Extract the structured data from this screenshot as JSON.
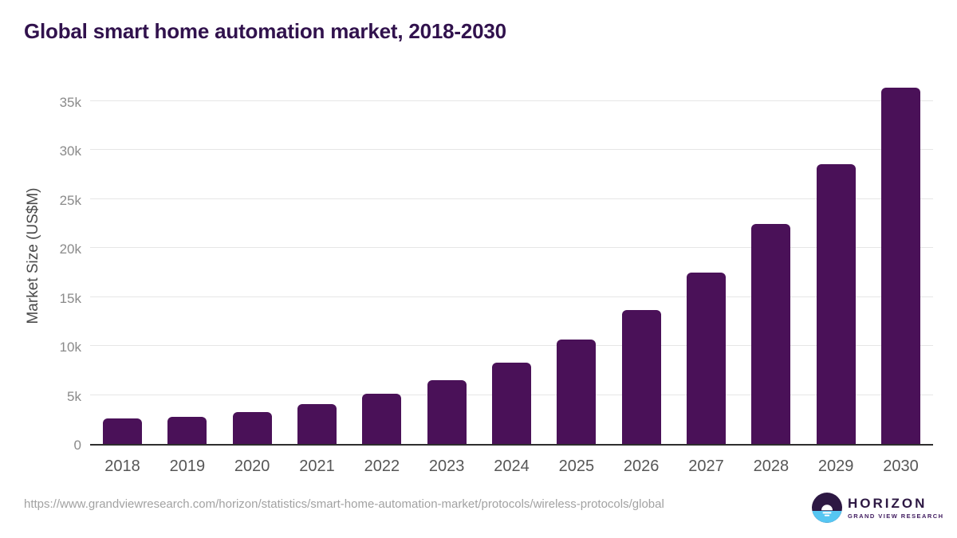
{
  "title": "Global smart home automation market, 2018-2030",
  "colors": {
    "bar": "#4a1158",
    "title": "#31124d",
    "axis_line": "#2e2e2e",
    "gridline": "#e6e6e6",
    "ytick_label": "#8a8a8a",
    "xtick_label": "#565656",
    "url_text": "#a2a2a2",
    "logo_dark_purple": "#2d1843",
    "logo_light_blue": "#56c6f2"
  },
  "chart_data": {
    "type": "bar",
    "title": "Global smart home automation market, 2018-2030",
    "xlabel": "",
    "ylabel": "Market Size (US$M)",
    "categories": [
      "2018",
      "2019",
      "2020",
      "2021",
      "2022",
      "2023",
      "2024",
      "2025",
      "2026",
      "2027",
      "2028",
      "2029",
      "2030"
    ],
    "values": [
      2600,
      2750,
      3250,
      4050,
      5100,
      6550,
      8300,
      10650,
      13700,
      17500,
      22450,
      28550,
      36400
    ],
    "ylim": [
      0,
      37000
    ],
    "yticks": [
      {
        "value": 0,
        "label": "0"
      },
      {
        "value": 5000,
        "label": "5k"
      },
      {
        "value": 10000,
        "label": "10k"
      },
      {
        "value": 15000,
        "label": "15k"
      },
      {
        "value": 20000,
        "label": "20k"
      },
      {
        "value": 25000,
        "label": "25k"
      },
      {
        "value": 30000,
        "label": "30k"
      },
      {
        "value": 35000,
        "label": "35k"
      }
    ],
    "grid": "horizontal",
    "legend_position": "none"
  },
  "footer": {
    "source_url": "https://www.grandviewresearch.com/horizon/statistics/smart-home-automation-market/protocols/wireless-protocols/global",
    "logo": {
      "brand": "HORIZON",
      "sub_brand": "GRAND VIEW RESEARCH"
    }
  }
}
